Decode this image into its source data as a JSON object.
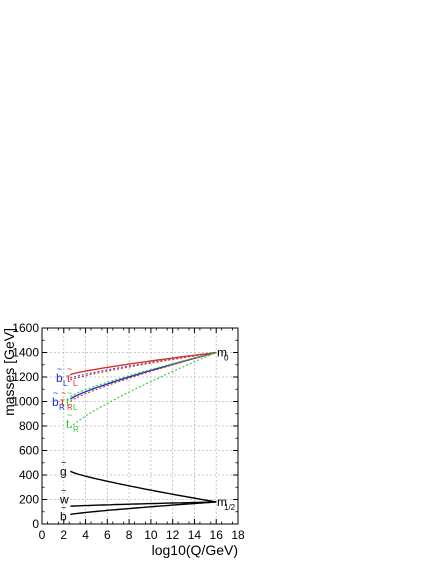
{
  "chart_data": {
    "type": "line",
    "xlabel": "log10(Q/GeV)",
    "ylabel": "masses [GeV]",
    "xlim": [
      0,
      18
    ],
    "ylim": [
      0,
      1600
    ],
    "x_ticks": [
      "0",
      "2",
      "4",
      "6",
      "8",
      "10",
      "12",
      "14",
      "16",
      "18"
    ],
    "y_ticks": [
      "0",
      "200",
      "400",
      "600",
      "800",
      "1000",
      "1200",
      "1400",
      "1600"
    ],
    "grid": true,
    "annotations": {
      "m0": "m",
      "m0_sub": "0",
      "mhalf": "m",
      "mhalf_sub": "1/2",
      "bl": "b",
      "bl_sub": "L",
      "tauL": "τ",
      "tauL_sub": "L",
      "br": "b",
      "br_sub": "R",
      "tauR": "τ",
      "tauR_sub": "R",
      "tr": "t",
      "tr_sub": "R",
      "tl": "t",
      "tl_sub": "L",
      "gluino": "g",
      "wino": "w",
      "bino": "b",
      "tilde": "~"
    },
    "series": [
      {
        "x": [
          2.6,
          16
        ],
        "y": [
          1220,
          1400
        ],
        "color": "#e0301e",
        "style": "solid"
      },
      {
        "x": [
          2.6,
          16
        ],
        "y": [
          1190,
          1400
        ],
        "color": "#3050e8",
        "style": "dotted"
      },
      {
        "x": [
          2.6,
          16
        ],
        "y": [
          1175,
          1400
        ],
        "color": "#e0301e",
        "style": "dotted"
      },
      {
        "x": [
          2.6,
          16
        ],
        "y": [
          1020,
          1400
        ],
        "color": "#1a2fd0",
        "style": "solid"
      },
      {
        "x": [
          2.6,
          16
        ],
        "y": [
          1000,
          1400
        ],
        "color": "#e0301e",
        "style": "dotted"
      },
      {
        "x": [
          2.6,
          16
        ],
        "y": [
          1040,
          1400
        ],
        "color": "#2ecc2e",
        "style": "dotted"
      },
      {
        "x": [
          2.6,
          16
        ],
        "y": [
          785,
          1400
        ],
        "color": "#2ecc2e",
        "style": "dotted"
      },
      {
        "x": [
          2.6,
          16
        ],
        "y": [
          430,
          180
        ],
        "color": "#000000",
        "style": "solid"
      },
      {
        "x": [
          2.6,
          16
        ],
        "y": [
          145,
          180
        ],
        "color": "#000000",
        "style": "solid"
      },
      {
        "x": [
          2.6,
          16
        ],
        "y": [
          78,
          180
        ],
        "color": "#000000",
        "style": "solid"
      }
    ]
  }
}
